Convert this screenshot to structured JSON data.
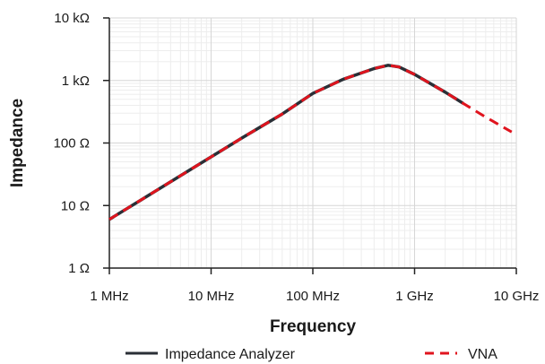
{
  "chart_data": {
    "type": "line",
    "xlabel": "Frequency",
    "ylabel": "Impedance",
    "x_scale": "log",
    "y_scale": "log",
    "xlim": [
      1000000,
      10000000000
    ],
    "ylim": [
      1,
      10000
    ],
    "x_ticks": [
      {
        "value": 1000000,
        "label": "1 MHz"
      },
      {
        "value": 10000000,
        "label": "10 MHz"
      },
      {
        "value": 100000000,
        "label": "100 MHz"
      },
      {
        "value": 1000000000,
        "label": "1 GHz"
      },
      {
        "value": 10000000000,
        "label": "10 GHz"
      }
    ],
    "y_ticks": [
      {
        "value": 1,
        "label": "1 Ω"
      },
      {
        "value": 10,
        "label": "10 Ω"
      },
      {
        "value": 100,
        "label": "100 Ω"
      },
      {
        "value": 1000,
        "label": "1 kΩ"
      },
      {
        "value": 10000,
        "label": "10 kΩ"
      }
    ],
    "grid": true,
    "legend_position": "bottom",
    "series": [
      {
        "name": "Impedance Analyzer",
        "color": "#2a2f36",
        "style": "solid",
        "x": [
          1000000,
          2000000,
          5000000,
          10000000,
          20000000,
          50000000,
          100000000,
          200000000,
          400000000,
          550000000,
          700000000,
          1000000000,
          2000000000,
          3000000000
        ],
        "y": [
          6,
          12,
          30,
          60,
          120,
          290,
          620,
          1050,
          1550,
          1750,
          1650,
          1250,
          650,
          430
        ]
      },
      {
        "name": "VNA",
        "color": "#e0141e",
        "style": "dashed",
        "x": [
          1000000,
          2000000,
          5000000,
          10000000,
          20000000,
          50000000,
          100000000,
          200000000,
          400000000,
          550000000,
          700000000,
          1000000000,
          2000000000,
          3000000000,
          5000000000,
          9000000000
        ],
        "y": [
          6,
          12,
          30,
          60,
          120,
          290,
          620,
          1050,
          1550,
          1750,
          1650,
          1250,
          650,
          430,
          260,
          150
        ]
      }
    ]
  }
}
